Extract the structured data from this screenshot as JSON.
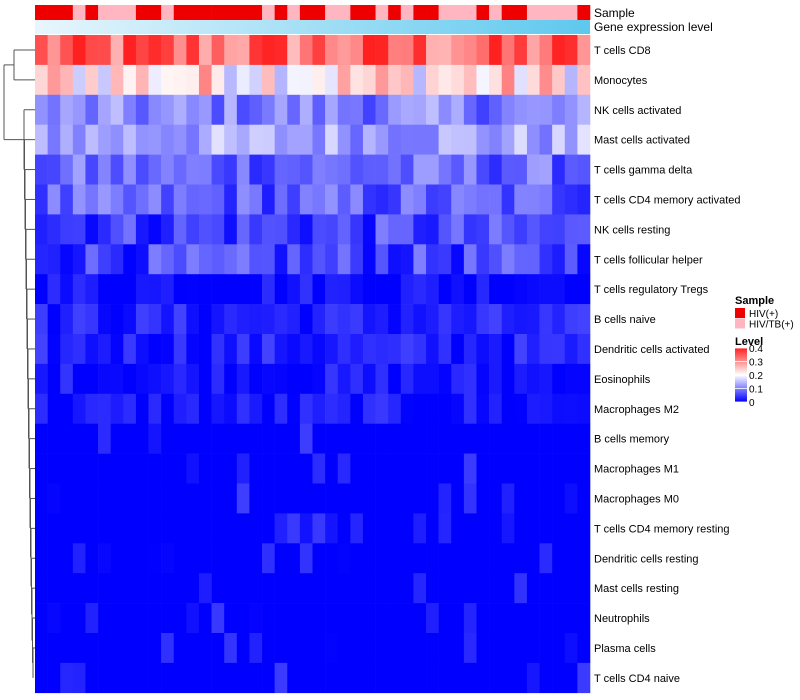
{
  "chart_data": {
    "type": "heatmap",
    "annotation_tracks": [
      "Sample",
      "Gene expression level"
    ],
    "rows": [
      "T cells CD8",
      "Monocytes",
      "NK cells activated",
      "Mast cells activated",
      "T cells gamma delta",
      "T cells CD4 memory activated",
      "NK cells resting",
      "T cells follicular helper",
      "T cells regulatory  Tregs",
      "B cells naive",
      "Dendritic cells activated",
      "Eosinophils",
      "Macrophages M2",
      "B cells memory",
      "Macrophages M1",
      "Macrophages M0",
      "T cells CD4 memory resting",
      "Dendritic cells resting",
      "Mast cells resting",
      "Neutrophils",
      "Plasma cells",
      "T cells CD4 naive"
    ],
    "n_samples": 44,
    "row_mean_levels": [
      0.33,
      0.23,
      0.1,
      0.13,
      0.08,
      0.07,
      0.05,
      0.05,
      0.02,
      0.03,
      0.03,
      0.02,
      0.02,
      0.01,
      0.01,
      0.01,
      0.0,
      0.0,
      0.0,
      0.0,
      0.01,
      0.0
    ],
    "sample_groups": [
      "HIV(+)",
      "HIV(+)",
      "HIV(+)",
      "HIV/TB(+)",
      "HIV(+)",
      "HIV/TB(+)",
      "HIV/TB(+)",
      "HIV/TB(+)",
      "HIV(+)",
      "HIV(+)",
      "HIV/TB(+)",
      "HIV(+)",
      "HIV(+)",
      "HIV(+)",
      "HIV(+)",
      "HIV(+)",
      "HIV(+)",
      "HIV(+)",
      "HIV/TB(+)",
      "HIV(+)",
      "HIV/TB(+)",
      "HIV(+)",
      "HIV(+)",
      "HIV/TB(+)",
      "HIV/TB(+)",
      "HIV(+)",
      "HIV(+)",
      "HIV/TB(+)",
      "HIV(+)",
      "HIV/TB(+)",
      "HIV(+)",
      "HIV(+)",
      "HIV/TB(+)",
      "HIV/TB(+)",
      "HIV/TB(+)",
      "HIV(+)",
      "HIV/TB(+)",
      "HIV(+)",
      "HIV(+)",
      "HIV/TB(+)",
      "HIV/TB(+)",
      "HIV/TB(+)",
      "HIV/TB(+)",
      "HIV(+)"
    ],
    "legend": {
      "sample_title": "Sample",
      "sample_entries": [
        {
          "label": "HIV(+)",
          "color": "#ee0000"
        },
        {
          "label": "HIV/TB(+)",
          "color": "#ffb6c1"
        }
      ],
      "level_title": "Level",
      "level_ticks": [
        "0.4",
        "0.3",
        "0.2",
        "0.1",
        "0"
      ],
      "level_range": [
        0,
        0.4
      ]
    },
    "colors": {
      "low": "#0000ff",
      "mid": "#ffffff",
      "high": "#ff2020",
      "expression_start": "#e8f6fc",
      "expression_end": "#5ec8ee"
    }
  }
}
